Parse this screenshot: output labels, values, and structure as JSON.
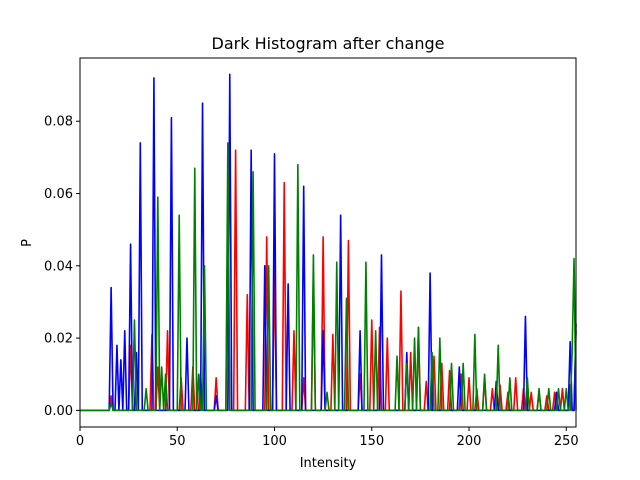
{
  "chart_data": {
    "type": "line",
    "title": "Dark Histogram after change",
    "xlabel": "Intensity",
    "ylabel": "P",
    "xlim": [
      0,
      255
    ],
    "ylim": [
      -0.0046,
      0.0975
    ],
    "xticks": [
      0,
      50,
      100,
      150,
      200,
      250
    ],
    "xtick_labels": [
      "0",
      "50",
      "100",
      "150",
      "200",
      "250"
    ],
    "yticks": [
      0.0,
      0.02,
      0.04,
      0.06,
      0.08
    ],
    "ytick_labels": [
      "0.00",
      "0.02",
      "0.04",
      "0.06",
      "0.08"
    ],
    "grid": false,
    "series": [
      {
        "color": "#ff0000",
        "peaks": [
          [
            16,
            0.004
          ],
          [
            26,
            0.018
          ],
          [
            37,
            0.021
          ],
          [
            40,
            0.012
          ],
          [
            45,
            0.022
          ],
          [
            52,
            0.009
          ],
          [
            58,
            0.012
          ],
          [
            62,
            0.01
          ],
          [
            70,
            0.009
          ],
          [
            76,
            0.055
          ],
          [
            80,
            0.072
          ],
          [
            86,
            0.032
          ],
          [
            96,
            0.048
          ],
          [
            100,
            0.04
          ],
          [
            105,
            0.063
          ],
          [
            110,
            0.022
          ],
          [
            115,
            0.009
          ],
          [
            120,
            0.037
          ],
          [
            125,
            0.048
          ],
          [
            130,
            0.021
          ],
          [
            138,
            0.047
          ],
          [
            144,
            0.01
          ],
          [
            150,
            0.025
          ],
          [
            154,
            0.023
          ],
          [
            158,
            0.02
          ],
          [
            165,
            0.033
          ],
          [
            170,
            0.016
          ],
          [
            174,
            0.023
          ],
          [
            178,
            0.008
          ],
          [
            182,
            0.015
          ],
          [
            186,
            0.013
          ],
          [
            190,
            0.011
          ],
          [
            196,
            0.01
          ],
          [
            200,
            0.009
          ],
          [
            204,
            0.006
          ],
          [
            208,
            0.009
          ],
          [
            212,
            0.006
          ],
          [
            216,
            0.007
          ],
          [
            220,
            0.005
          ],
          [
            224,
            0.009
          ],
          [
            228,
            0.006
          ],
          [
            232,
            0.005
          ],
          [
            236,
            0.005
          ],
          [
            240,
            0.004
          ],
          [
            244,
            0.005
          ],
          [
            248,
            0.006
          ],
          [
            252,
            0.007
          ],
          [
            255,
            0.022
          ]
        ]
      },
      {
        "color": "#0000ff",
        "peaks": [
          [
            16,
            0.034
          ],
          [
            19,
            0.018
          ],
          [
            21,
            0.014
          ],
          [
            23,
            0.022
          ],
          [
            26,
            0.046
          ],
          [
            29,
            0.016
          ],
          [
            31,
            0.074
          ],
          [
            38,
            0.092
          ],
          [
            47,
            0.081
          ],
          [
            55,
            0.02
          ],
          [
            63,
            0.085
          ],
          [
            70,
            0.004
          ],
          [
            77,
            0.093
          ],
          [
            88,
            0.072
          ],
          [
            95,
            0.04
          ],
          [
            100,
            0.071
          ],
          [
            107,
            0.035
          ],
          [
            115,
            0.062
          ],
          [
            125,
            0.022
          ],
          [
            134,
            0.054
          ],
          [
            144,
            0.022
          ],
          [
            155,
            0.043
          ],
          [
            168,
            0.016
          ],
          [
            180,
            0.038
          ],
          [
            195,
            0.012
          ],
          [
            214,
            0.008
          ],
          [
            229,
            0.026
          ],
          [
            245,
            0.005
          ],
          [
            252,
            0.019
          ],
          [
            255,
            0.024
          ]
        ]
      },
      {
        "color": "#008000",
        "peaks": [
          [
            16,
            0.002
          ],
          [
            28,
            0.025
          ],
          [
            34,
            0.006
          ],
          [
            40,
            0.059
          ],
          [
            42,
            0.012
          ],
          [
            44,
            0.01
          ],
          [
            51,
            0.054
          ],
          [
            59,
            0.067
          ],
          [
            61,
            0.01
          ],
          [
            64,
            0.04
          ],
          [
            76,
            0.074
          ],
          [
            89,
            0.066
          ],
          [
            97,
            0.04
          ],
          [
            112,
            0.068
          ],
          [
            120,
            0.043
          ],
          [
            127,
            0.005
          ],
          [
            132,
            0.041
          ],
          [
            137,
            0.031
          ],
          [
            147,
            0.041
          ],
          [
            152,
            0.022
          ],
          [
            163,
            0.015
          ],
          [
            168,
            0.013
          ],
          [
            172,
            0.02
          ],
          [
            174,
            0.023
          ],
          [
            181,
            0.016
          ],
          [
            185,
            0.02
          ],
          [
            191,
            0.013
          ],
          [
            197,
            0.013
          ],
          [
            203,
            0.021
          ],
          [
            208,
            0.01
          ],
          [
            215,
            0.018
          ],
          [
            221,
            0.009
          ],
          [
            230,
            0.009
          ],
          [
            236,
            0.006
          ],
          [
            241,
            0.006
          ],
          [
            246,
            0.006
          ],
          [
            250,
            0.006
          ],
          [
            253,
            0.016
          ],
          [
            254,
            0.042
          ]
        ]
      }
    ]
  }
}
